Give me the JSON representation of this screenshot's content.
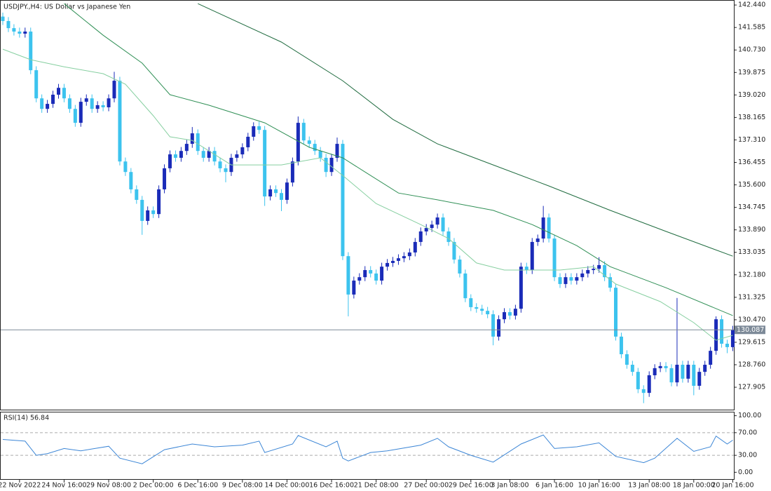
{
  "chart_data": [
    {
      "type": "candlestick",
      "title": "USDJPY.,H4:  US Dollar vs Japanese Yen",
      "up_color": "#1a2bb8",
      "down_color": "#3cc3ee",
      "categories": [
        null,
        null,
        null,
        "22 Nov 2022",
        null,
        null,
        null,
        null,
        null,
        null,
        null,
        "24 Nov 16:00",
        null,
        null,
        null,
        null,
        null,
        null,
        null,
        "29 Nov 08:00",
        null,
        null,
        null,
        null,
        null,
        null,
        null,
        "2 Dec 00:00",
        null,
        null,
        null,
        null,
        null,
        null,
        null,
        "6 Dec 16:00",
        null,
        null,
        null,
        null,
        null,
        null,
        null,
        "9 Dec 08:00",
        null,
        null,
        null,
        null,
        null,
        null,
        null,
        "14 Dec 00:00",
        null,
        null,
        null,
        null,
        null,
        null,
        null,
        "16 Dec 16:00",
        null,
        null,
        null,
        null,
        null,
        null,
        null,
        "21 Dec 08:00",
        null,
        null,
        null,
        null,
        null,
        null,
        null,
        null,
        "27 Dec 00:00",
        null,
        null,
        null,
        null,
        null,
        null,
        null,
        "29 Dec 16:00",
        null,
        null,
        null,
        null,
        null,
        null,
        "3 Jan 08:00",
        null,
        null,
        null,
        null,
        null,
        null,
        null,
        "6 Jan 16:00",
        null,
        null,
        null,
        null,
        null,
        null,
        null,
        "10 Jan 16:00",
        null,
        null,
        null,
        null,
        null,
        null,
        null,
        null,
        "13 Jan 08:00",
        null,
        null,
        null,
        null,
        null,
        null,
        null,
        "18 Jan 00:00",
        null,
        null,
        null,
        null,
        null,
        null,
        "20 Jan 16:00"
      ],
      "open": [
        142,
        141.83,
        141.56,
        141.43,
        141.35,
        141.43,
        139.96,
        138.89,
        138.49,
        138.68,
        139.03,
        139.29,
        138.89,
        138.49,
        137.96,
        138.76,
        138.89,
        138.49,
        138.63,
        138.55,
        138.89,
        139.56,
        136.49,
        136.09,
        135.43,
        135.03,
        134.23,
        134.63,
        134.49,
        135.43,
        136.23,
        136.76,
        136.63,
        136.89,
        137.16,
        137.56,
        136.89,
        136.63,
        136.89,
        136.49,
        136.23,
        136.09,
        136.63,
        136.76,
        137.03,
        137.43,
        137.83,
        137.69,
        135.16,
        135.43,
        135.29,
        135.03,
        135.69,
        136.49,
        137.96,
        137.29,
        137.16,
        136.89,
        136.63,
        136.09,
        136.63,
        137.16,
        132.89,
        131.43,
        131.96,
        132.09,
        132.36,
        132.23,
        131.96,
        132.49,
        132.63,
        132.71,
        132.81,
        132.89,
        133.03,
        133.43,
        133.83,
        133.96,
        134.09,
        134.36,
        133.83,
        133.43,
        132.76,
        132.23,
        131.29,
        130.95,
        130.89,
        130.81,
        130.68,
        129.83,
        130.49,
        130.76,
        130.63,
        130.89,
        132.49,
        132.36,
        133.43,
        133.56,
        134.36,
        133.56,
        132.09,
        131.83,
        132.09,
        131.96,
        132.09,
        132.23,
        132.36,
        132.41,
        132.55,
        132.09,
        131.69,
        129.83,
        129.16,
        128.76,
        128.49,
        127.83,
        127.69,
        128.36,
        128.63,
        128.71,
        128.63,
        128.09,
        128.76,
        128.23,
        128.76,
        127.96,
        128.49,
        128.76,
        129.29,
        130.49,
        129.56,
        129.43
      ],
      "high": [
        142.15,
        141.98,
        141.71,
        141.58,
        141.58,
        141.58,
        140.11,
        139.04,
        138.83,
        139.18,
        139.44,
        139.44,
        139.04,
        138.64,
        138.91,
        139.04,
        139.04,
        138.78,
        138.78,
        139.04,
        139.9,
        139.71,
        136.64,
        136.24,
        135.58,
        135.18,
        134.78,
        134.78,
        135.58,
        136.38,
        136.91,
        136.91,
        137.04,
        137.31,
        137.8,
        137.71,
        137.04,
        137.04,
        137.04,
        136.64,
        136.38,
        136.78,
        136.91,
        137.18,
        137.58,
        137.98,
        138,
        137.84,
        135.58,
        135.58,
        135.44,
        135.84,
        136.64,
        138.2,
        138.11,
        137.44,
        137.31,
        137.04,
        136.78,
        136.78,
        137.4,
        137.31,
        133.04,
        132.11,
        132.24,
        132.51,
        132.51,
        132.38,
        132.64,
        132.78,
        132.86,
        132.96,
        133.04,
        133.18,
        133.58,
        133.98,
        134.11,
        134.24,
        134.51,
        134.51,
        133.98,
        133.58,
        132.91,
        132.38,
        131.44,
        131.1,
        131.04,
        130.96,
        130.83,
        130.64,
        130.91,
        130.91,
        131.04,
        132.64,
        132.64,
        133.58,
        133.71,
        134.8,
        134.51,
        133.71,
        132.24,
        132.24,
        132.24,
        132.24,
        132.38,
        132.51,
        132.56,
        132.85,
        132.7,
        132.24,
        131.84,
        129.98,
        129.31,
        128.91,
        128.64,
        127.98,
        128.51,
        128.78,
        128.86,
        128.86,
        128.78,
        131.3,
        128.91,
        128.91,
        128.91,
        128.64,
        128.91,
        129.44,
        130.6,
        130.64,
        129.71,
        130.24
      ],
      "low": [
        141.68,
        141.41,
        141.28,
        141.2,
        141.2,
        139.81,
        138.74,
        138.34,
        138.34,
        138.53,
        138.88,
        138.74,
        138.34,
        137.81,
        137.81,
        138.61,
        138.34,
        138.34,
        138.4,
        138.4,
        138.74,
        136.34,
        135.94,
        135.28,
        134.88,
        133.7,
        134.08,
        134.34,
        134.34,
        135.28,
        136.08,
        136.48,
        136.48,
        136.74,
        137.01,
        136.74,
        136.48,
        136.48,
        136.34,
        136.08,
        135.7,
        135.94,
        136.48,
        136.61,
        136.88,
        137.28,
        137.54,
        134.8,
        135.01,
        135.14,
        134.6,
        134.88,
        135.54,
        136.34,
        137.14,
        137.01,
        136.74,
        136.48,
        135.9,
        135.94,
        136.48,
        132.74,
        130.6,
        131.28,
        131.81,
        131.94,
        132.08,
        131.81,
        131.81,
        132.34,
        132.48,
        132.56,
        132.66,
        132.74,
        132.88,
        133.28,
        133.68,
        133.81,
        133.94,
        133.68,
        133.28,
        132.61,
        132.08,
        131.14,
        130.8,
        130.74,
        130.66,
        130.53,
        129.5,
        129.68,
        130.34,
        130.48,
        130.48,
        130.74,
        132.21,
        132.21,
        133.28,
        133.41,
        133.41,
        131.94,
        131.68,
        131.68,
        131.81,
        131.81,
        131.94,
        132.08,
        132.21,
        132.26,
        131.94,
        131.54,
        129.68,
        129.01,
        128.61,
        128.34,
        127.68,
        127.3,
        127.54,
        128.21,
        128.48,
        128.48,
        127.94,
        127.94,
        128.08,
        128.08,
        127.6,
        127.81,
        128.34,
        128.61,
        129.14,
        129.41,
        129.2,
        129.28
      ],
      "close": [
        141.83,
        141.56,
        141.43,
        141.35,
        141.43,
        139.96,
        138.89,
        138.49,
        138.68,
        139.03,
        139.29,
        138.89,
        138.49,
        137.96,
        138.76,
        138.89,
        138.49,
        138.63,
        138.55,
        138.89,
        139.56,
        136.49,
        136.09,
        135.43,
        135.03,
        134.23,
        134.63,
        134.49,
        135.43,
        136.23,
        136.76,
        136.63,
        136.89,
        137.16,
        137.56,
        136.89,
        136.63,
        136.89,
        136.49,
        136.23,
        136.09,
        136.63,
        136.76,
        137.03,
        137.43,
        137.83,
        137.69,
        135.16,
        135.43,
        135.29,
        135.03,
        135.69,
        136.49,
        137.96,
        137.29,
        137.16,
        136.89,
        136.63,
        136.09,
        136.63,
        137.16,
        132.89,
        131.43,
        131.96,
        132.09,
        132.36,
        132.23,
        131.96,
        132.49,
        132.63,
        132.71,
        132.81,
        132.89,
        133.03,
        133.43,
        133.83,
        133.96,
        134.09,
        134.36,
        133.83,
        133.43,
        132.76,
        132.23,
        131.29,
        130.95,
        130.89,
        130.81,
        130.68,
        129.83,
        130.49,
        130.76,
        130.63,
        130.89,
        132.49,
        132.36,
        133.43,
        133.56,
        134.36,
        133.56,
        132.09,
        131.83,
        132.09,
        131.96,
        132.09,
        132.23,
        132.36,
        132.41,
        132.55,
        132.09,
        131.69,
        129.83,
        129.16,
        128.76,
        128.49,
        127.83,
        127.69,
        128.36,
        128.63,
        128.71,
        128.63,
        128.09,
        128.76,
        128.23,
        128.76,
        127.96,
        128.49,
        128.76,
        129.29,
        130.49,
        129.56,
        129.43,
        130.087
      ],
      "overlays": [
        {
          "color": "#1f6b3f",
          "x": [
            35,
            50,
            61,
            70,
            78,
            88,
            98,
            109,
            119,
            131
          ],
          "values": [
            142.49,
            141.03,
            139.56,
            138.09,
            137.16,
            136.36,
            135.56,
            134.63,
            133.83,
            132.89
          ]
        },
        {
          "color": "#2f8f55",
          "x": [
            11,
            18,
            25,
            30,
            37,
            47,
            55,
            61,
            65,
            71,
            78,
            88,
            95,
            103,
            109,
            119,
            131
          ],
          "values": [
            142.49,
            141.29,
            140.23,
            139.03,
            138.63,
            137.96,
            137.03,
            136.63,
            136.09,
            135.29,
            135.03,
            134.63,
            134.09,
            133.29,
            132.49,
            131.69,
            130.63
          ]
        },
        {
          "color": "#86cfa0",
          "x": [
            0,
            5,
            11,
            18,
            22,
            27,
            30,
            34,
            41,
            50,
            57,
            61,
            67,
            75,
            80,
            85,
            90,
            95,
            100,
            106,
            110,
            118,
            124,
            128,
            131
          ],
          "values": [
            140.76,
            140.36,
            140.09,
            139.83,
            139.43,
            138.23,
            137.43,
            137.29,
            136.36,
            136.36,
            136.63,
            135.96,
            134.89,
            134.09,
            133.56,
            132.63,
            132.36,
            132.36,
            132.36,
            132.49,
            131.83,
            131.16,
            130.36,
            129.69,
            129.88
          ]
        }
      ],
      "last_price": 130.087,
      "ylim": [
        127.08,
        142.55
      ],
      "yticks": [
        {
          "value": 142.44,
          "label": "142.440"
        },
        141.585,
        {
          "value": 140.73,
          "label": "140.730"
        },
        139.875,
        {
          "value": 139.02,
          "label": "139.020"
        },
        138.165,
        {
          "value": 137.31,
          "label": "137.310"
        },
        136.455,
        {
          "value": 135.6,
          "label": "135.600"
        },
        134.745,
        {
          "value": 133.89,
          "label": "133.890"
        },
        133.035,
        {
          "value": 132.18,
          "label": "132.180"
        },
        131.325,
        {
          "value": 130.47,
          "label": "130.470"
        },
        129.615,
        {
          "value": 128.76,
          "label": "128.760"
        },
        127.905
      ]
    },
    {
      "type": "line",
      "title": "RSI(14) 56.84",
      "color": "#3c86d6",
      "x": [
        0,
        4,
        6,
        8,
        11,
        14,
        19,
        21,
        25,
        29,
        34,
        38,
        43,
        46,
        47,
        52,
        53,
        58,
        60,
        61,
        62,
        66,
        69,
        75,
        78,
        80,
        84,
        88,
        93,
        97,
        99,
        103,
        107,
        110,
        115,
        117,
        121,
        124,
        127,
        128,
        130,
        131
      ],
      "values": [
        58,
        55,
        30,
        33,
        42,
        38,
        46,
        25,
        15,
        40,
        50,
        45,
        48,
        55,
        35,
        50,
        65,
        45,
        55,
        25,
        20,
        35,
        38,
        48,
        60,
        45,
        30,
        18,
        50,
        66,
        42,
        45,
        52,
        28,
        17,
        25,
        60,
        37,
        45,
        64,
        50,
        56.84
      ],
      "levels": [
        70,
        30
      ],
      "ylim": [
        -12,
        107
      ],
      "yticks": [
        {
          "value": 100,
          "label": "100.00"
        },
        {
          "value": 70,
          "label": "70.00"
        },
        {
          "value": 30,
          "label": "30.00"
        },
        {
          "value": 0,
          "label": "0.00"
        }
      ]
    }
  ]
}
